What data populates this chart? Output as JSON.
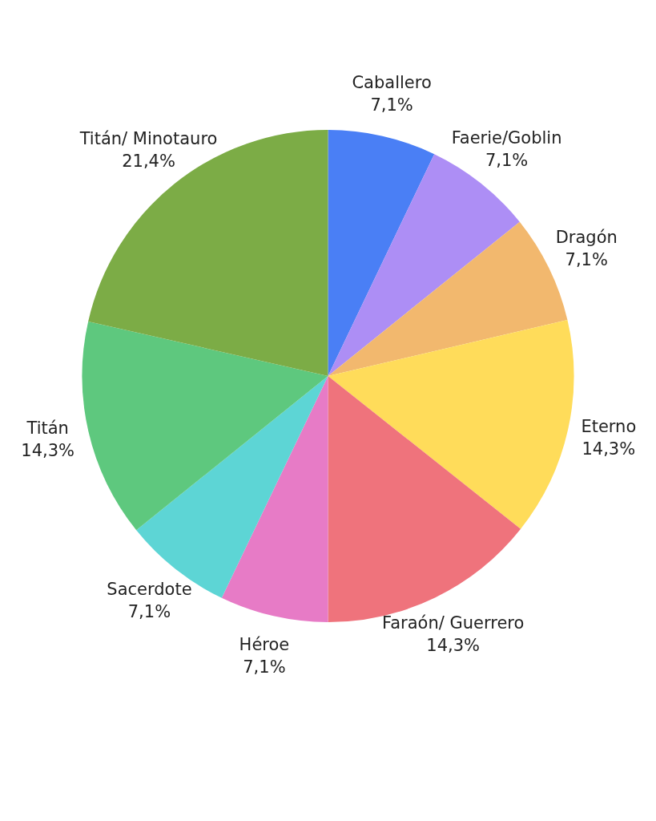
{
  "chart_data": {
    "type": "pie",
    "categories": [
      "Caballero",
      "Faerie/Goblin",
      "Dragón",
      "Eterno",
      "Faraón/ Guerrero",
      "Héroe",
      "Sacerdote",
      "Titán",
      "Titán/ Minotauro"
    ],
    "values": [
      7.1,
      7.1,
      7.1,
      14.3,
      14.3,
      7.1,
      7.1,
      14.3,
      21.4
    ],
    "value_labels": [
      "7,1%",
      "7,1%",
      "7,1%",
      "14,3%",
      "14,3%",
      "7,1%",
      "7,1%",
      "14,3%",
      "21,4%"
    ],
    "colors": [
      "#4a7ff5",
      "#ad8ef5",
      "#f2b86e",
      "#ffdc5a",
      "#ef737c",
      "#e77bc6",
      "#5dd5d5",
      "#5ec87e",
      "#7cac46"
    ],
    "legend": false
  }
}
